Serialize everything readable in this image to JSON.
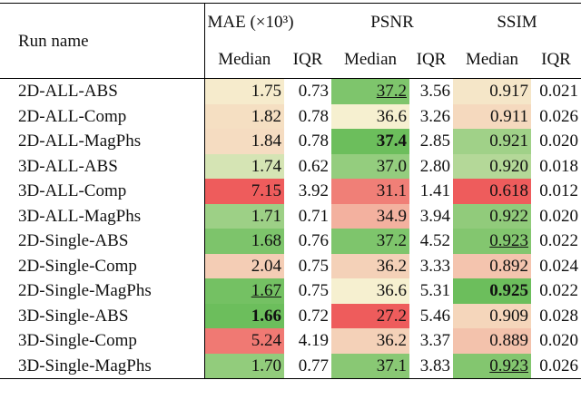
{
  "header": {
    "run_name": "Run name",
    "groups": [
      {
        "label": "MAE (×10³)",
        "columns": [
          "Median",
          "IQR"
        ]
      },
      {
        "label": "PSNR",
        "columns": [
          "Median",
          "IQR"
        ]
      },
      {
        "label": "SSIM",
        "columns": [
          "Median",
          "IQR"
        ]
      }
    ]
  },
  "rows": [
    {
      "name": "2D-ALL-ABS",
      "cells": [
        "1.75",
        "0.73",
        "37.2",
        "3.56",
        "0.917",
        "0.021"
      ]
    },
    {
      "name": "2D-ALL-Comp",
      "cells": [
        "1.82",
        "0.78",
        "36.6",
        "3.26",
        "0.911",
        "0.026"
      ]
    },
    {
      "name": "2D-ALL-MagPhs",
      "cells": [
        "1.84",
        "0.78",
        "37.4",
        "2.85",
        "0.921",
        "0.020"
      ]
    },
    {
      "name": "3D-ALL-ABS",
      "cells": [
        "1.74",
        "0.62",
        "37.0",
        "2.80",
        "0.920",
        "0.018"
      ]
    },
    {
      "name": "3D-ALL-Comp",
      "cells": [
        "7.15",
        "3.92",
        "31.1",
        "1.41",
        "0.618",
        "0.012"
      ]
    },
    {
      "name": "3D-ALL-MagPhs",
      "cells": [
        "1.71",
        "0.71",
        "34.9",
        "3.94",
        "0.922",
        "0.020"
      ]
    },
    {
      "name": "2D-Single-ABS",
      "cells": [
        "1.68",
        "0.76",
        "37.2",
        "4.52",
        "0.923",
        "0.022"
      ]
    },
    {
      "name": "2D-Single-Comp",
      "cells": [
        "2.04",
        "0.75",
        "36.2",
        "3.33",
        "0.892",
        "0.024"
      ]
    },
    {
      "name": "2D-Single-MagPhs",
      "cells": [
        "1.67",
        "0.75",
        "36.6",
        "5.31",
        "0.925",
        "0.022"
      ]
    },
    {
      "name": "3D-Single-ABS",
      "cells": [
        "1.66",
        "0.72",
        "27.2",
        "5.46",
        "0.909",
        "0.028"
      ]
    },
    {
      "name": "3D-Single-Comp",
      "cells": [
        "5.24",
        "4.19",
        "36.2",
        "3.37",
        "0.889",
        "0.020"
      ]
    },
    {
      "name": "3D-Single-MagPhs",
      "cells": [
        "1.70",
        "0.77",
        "37.1",
        "3.83",
        "0.923",
        "0.026"
      ]
    }
  ],
  "bold": [
    [
      9,
      0
    ],
    [
      2,
      2
    ],
    [
      8,
      4
    ]
  ],
  "underline": [
    [
      8,
      0
    ],
    [
      0,
      2
    ],
    [
      6,
      4
    ],
    [
      11,
      4
    ]
  ]
}
